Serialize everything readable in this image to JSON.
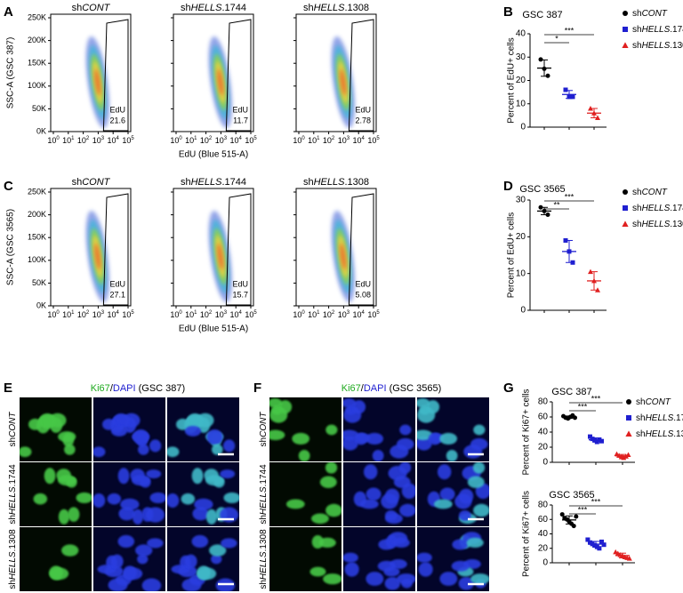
{
  "conditions": [
    [
      "sh",
      "CONT"
    ],
    [
      "sh",
      "HELLS",
      ".1744"
    ],
    [
      "sh",
      "HELLS",
      ".1308"
    ]
  ],
  "flow_yticks": [
    "250K",
    "200K",
    "150K",
    "100K",
    "50K",
    "0K"
  ],
  "flow_x_base": "10",
  "flow_x_exponents": [
    0,
    1,
    2,
    3,
    4,
    5
  ],
  "flow_x_label": "EdU (Blue 515-A)",
  "flow_gate_label": "EdU",
  "flow_rows": [
    {
      "letter": "A",
      "y_label": "SSC-A (GSC 387)",
      "gate_values": [
        21.6,
        11.7,
        2.78
      ]
    },
    {
      "letter": "C",
      "y_label": "SSC-A (GSC 3565)",
      "gate_values": [
        27.1,
        15.7,
        5.08
      ]
    }
  ],
  "legend_colors": [
    "#000000",
    "#1f1fd0",
    "#e02020"
  ],
  "legend_markers": [
    "circle",
    "square",
    "triangle"
  ],
  "dot_panels": [
    {
      "letter": "B",
      "title": "GSC 387",
      "y_label": "Percent of EdU+ cells",
      "ylim": [
        0,
        40
      ],
      "yticks": [
        0,
        10,
        20,
        30,
        40
      ],
      "show_legend": true,
      "groups": [
        {
          "values": [
            29,
            25,
            22
          ],
          "mean": 25.3,
          "sd": 3.5
        },
        {
          "values": [
            16,
            13,
            13
          ],
          "mean": 14,
          "sd": 1.7
        },
        {
          "values": [
            8,
            6,
            4
          ],
          "mean": 6,
          "sd": 2
        }
      ],
      "significance": [
        {
          "from": 0,
          "to": 1,
          "label": "*"
        },
        {
          "from": 0,
          "to": 2,
          "label": "***"
        }
      ]
    },
    {
      "letter": "D",
      "title": "GSC 3565",
      "y_label": "Percent of EdU+ cells",
      "ylim": [
        0,
        30
      ],
      "yticks": [
        0,
        10,
        20,
        30
      ],
      "show_legend": true,
      "groups": [
        {
          "values": [
            28,
            27,
            26
          ],
          "mean": 27,
          "sd": 1
        },
        {
          "values": [
            19,
            16,
            13
          ],
          "mean": 16,
          "sd": 3
        },
        {
          "values": [
            10.5,
            8,
            5.5
          ],
          "mean": 8,
          "sd": 2.5
        }
      ],
      "significance": [
        {
          "from": 0,
          "to": 1,
          "label": "**"
        },
        {
          "from": 0,
          "to": 2,
          "label": "***"
        }
      ]
    },
    {
      "letter": "G",
      "title": "GSC 387",
      "y_label": "Percent of Ki67+ cells",
      "ylim": [
        0,
        80
      ],
      "yticks": [
        0,
        20,
        40,
        60,
        80
      ],
      "show_legend": true,
      "groups": [
        {
          "values": [
            61,
            59,
            58,
            60,
            62,
            59
          ],
          "mean": 59.8,
          "sd": 1.5
        },
        {
          "values": [
            34,
            31,
            29,
            27,
            30,
            28
          ],
          "mean": 29.8,
          "sd": 2.5
        },
        {
          "values": [
            11,
            9,
            7,
            6,
            8,
            10
          ],
          "mean": 8.5,
          "sd": 1.9
        }
      ],
      "significance": [
        {
          "from": 0,
          "to": 1,
          "label": "***"
        },
        {
          "from": 0,
          "to": 2,
          "label": "***"
        }
      ]
    },
    {
      "title": "GSC 3565",
      "y_label": "Percent of Ki67+ cells",
      "ylim": [
        0,
        80
      ],
      "yticks": [
        0,
        20,
        40,
        60,
        80
      ],
      "show_legend": false,
      "groups": [
        {
          "values": [
            67,
            62,
            60,
            57,
            54,
            51,
            64
          ],
          "mean": 59.3,
          "sd": 5.6
        },
        {
          "values": [
            32,
            28,
            26,
            24,
            22,
            20,
            29,
            25
          ],
          "mean": 25.8,
          "sd": 3.8
        },
        {
          "values": [
            15,
            13,
            11,
            10,
            8,
            7,
            6
          ],
          "mean": 10,
          "sd": 3.3
        }
      ],
      "significance": [
        {
          "from": 0,
          "to": 1,
          "label": "***"
        },
        {
          "from": 0,
          "to": 2,
          "label": "***"
        }
      ]
    }
  ],
  "micro_panels": [
    {
      "letter": "E",
      "title": [
        "Ki67",
        "/",
        "DAPI",
        " (GSC 387)"
      ]
    },
    {
      "letter": "F",
      "title": [
        "Ki67",
        "/",
        "DAPI",
        " (GSC 3565)"
      ]
    }
  ]
}
